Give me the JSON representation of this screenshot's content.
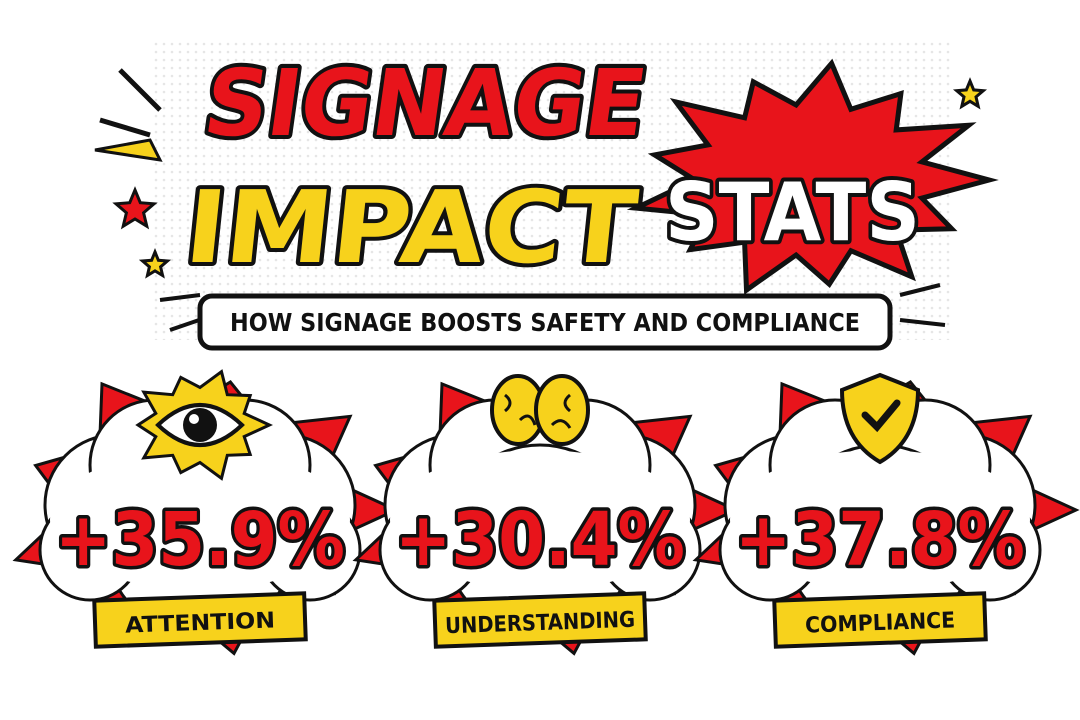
{
  "header": {
    "title_line1": "SIGNAGE",
    "title_line2": "IMPACT",
    "title_accent": "STATS",
    "subtitle": "HOW SIGNAGE BOOSTS SAFETY AND COMPLIANCE"
  },
  "stats": [
    {
      "value": "+35.9%",
      "label": "ATTENTION"
    },
    {
      "value": "+30.4%",
      "label": "UNDERSTANDING"
    },
    {
      "value": "+37.8%",
      "label": "COMPLIANCE"
    }
  ]
}
